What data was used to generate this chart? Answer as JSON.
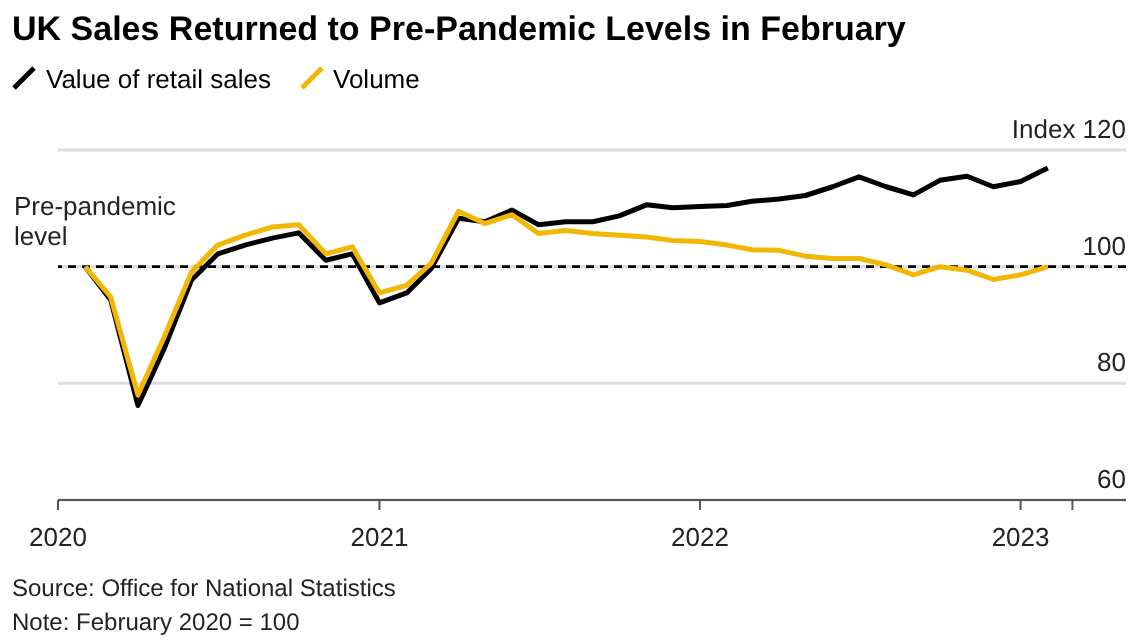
{
  "chart_data": {
    "type": "line",
    "title": "UK Sales Returned to Pre-Pandemic Levels in February",
    "x": [
      "2020-02",
      "2020-03",
      "2020-04",
      "2020-05",
      "2020-06",
      "2020-07",
      "2020-08",
      "2020-09",
      "2020-10",
      "2020-11",
      "2020-12",
      "2021-01",
      "2021-02",
      "2021-03",
      "2021-04",
      "2021-05",
      "2021-06",
      "2021-07",
      "2021-08",
      "2021-09",
      "2021-10",
      "2021-11",
      "2021-12",
      "2022-01",
      "2022-02",
      "2022-03",
      "2022-04",
      "2022-05",
      "2022-06",
      "2022-07",
      "2022-08",
      "2022-09",
      "2022-10",
      "2022-11",
      "2022-12",
      "2023-01",
      "2023-02"
    ],
    "series": [
      {
        "name": "Value of retail sales",
        "color": "#000000",
        "values": [
          100,
          94.3,
          76.2,
          86,
          97.7,
          102.2,
          103.7,
          104.9,
          105.8,
          101.1,
          102.2,
          93.8,
          95.5,
          99.7,
          108.3,
          107.7,
          109.7,
          107.2,
          107.7,
          107.7,
          108.7,
          110.6,
          110.1,
          110.3,
          110.5,
          111.2,
          111.6,
          112.2,
          113.7,
          115.4,
          113.7,
          112.3,
          114.8,
          115.5,
          113.7,
          114.6,
          116.9
        ]
      },
      {
        "name": "Volume",
        "color": "#f2b705",
        "values": [
          100,
          94.8,
          78,
          88,
          99.1,
          103.7,
          105.4,
          106.8,
          107.2,
          102.2,
          103.4,
          95.5,
          96.8,
          100.6,
          109.5,
          107.4,
          108.9,
          105.7,
          106.2,
          105.7,
          105.4,
          105.1,
          104.5,
          104.3,
          103.7,
          102.9,
          102.8,
          101.8,
          101.4,
          101.4,
          100.3,
          98.6,
          100,
          99.4,
          97.8,
          98.6,
          100
        ]
      }
    ],
    "xlim": [
      "2020-01",
      "2023-05"
    ],
    "xticks": [
      {
        "value": "2020-01",
        "label": "2020"
      },
      {
        "value": "2021-01",
        "label": "2021"
      },
      {
        "value": "2022-01",
        "label": "2022"
      },
      {
        "value": "2023-01",
        "label": "2023"
      },
      {
        "value": "2023-03",
        "label": null
      }
    ],
    "ylim": [
      60,
      120
    ],
    "yticks": [
      60,
      80,
      100,
      {
        "value": 120,
        "label": "Index 120"
      }
    ],
    "grid": "y",
    "legend": "top left",
    "ref_lines": [
      {
        "axis": "y",
        "value": 100,
        "label": "Pre-pandemic level",
        "color": "#000000",
        "line_style": "dashed"
      }
    ],
    "annotations": [
      "Source: Office for National Statistics",
      "Note: February 2020 = 100"
    ]
  }
}
